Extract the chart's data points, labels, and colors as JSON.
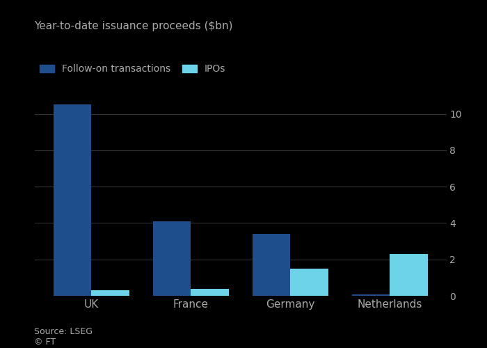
{
  "categories": [
    "UK",
    "France",
    "Germany",
    "Netherlands"
  ],
  "follow_on": [
    10.5,
    4.1,
    3.4,
    0.1
  ],
  "ipos": [
    0.3,
    0.4,
    1.5,
    2.3
  ],
  "follow_on_color": "#1f4e8c",
  "ipo_color": "#6dd3e8",
  "title": "Year-to-date issuance proceeds ($bn)",
  "legend_follow_on": "Follow-on transactions",
  "legend_ipos": "IPOs",
  "ylim": [
    0,
    11
  ],
  "yticks": [
    0,
    2,
    4,
    6,
    8,
    10
  ],
  "source": "Source: LSEG",
  "copyright": "© FT",
  "background_color": "#000000",
  "plot_bg_color": "#000000",
  "text_color": "#aaaaaa",
  "grid_color": "#333333",
  "bar_width": 0.38
}
